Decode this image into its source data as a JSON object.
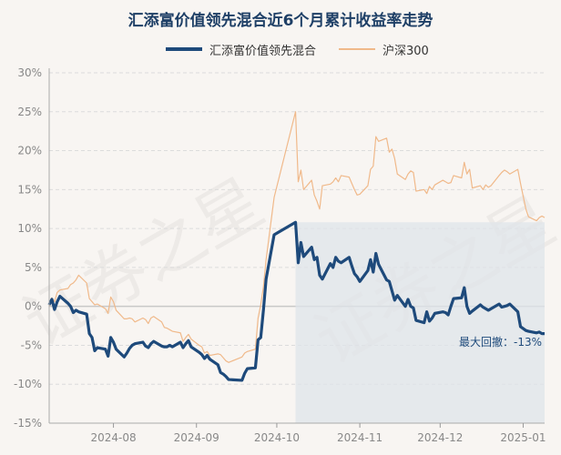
{
  "chart_data": {
    "type": "line",
    "title": "汇添富价值领先混合近6个月累计收益率走势",
    "legend_position": "top",
    "grid": true,
    "ylim": [
      -15,
      30
    ],
    "y_ticks": [
      "30%",
      "25%",
      "20%",
      "15%",
      "10%",
      "5%",
      "0%",
      "-5%",
      "-10%",
      "-15%"
    ],
    "x_ticks": [
      "2024-08",
      "2024-09",
      "2024-10",
      "2024-11",
      "2024-12",
      "2025-01"
    ],
    "x_start": "2024-07-08",
    "x_end": "2025-01-09",
    "series": [
      {
        "name": "汇添富价值领先混合",
        "color": "#1e4a7b",
        "points": [
          [
            "2024-07-08",
            0.2
          ],
          [
            "2024-07-09",
            0.9
          ],
          [
            "2024-07-10",
            -0.4
          ],
          [
            "2024-07-11",
            0.6
          ],
          [
            "2024-07-12",
            1.3
          ],
          [
            "2024-07-15",
            0.4
          ],
          [
            "2024-07-16",
            0.0
          ],
          [
            "2024-07-17",
            -0.8
          ],
          [
            "2024-07-18",
            -0.5
          ],
          [
            "2024-07-19",
            -0.7
          ],
          [
            "2024-07-22",
            -1.0
          ],
          [
            "2024-07-23",
            -3.5
          ],
          [
            "2024-07-24",
            -4.0
          ],
          [
            "2024-07-25",
            -5.7
          ],
          [
            "2024-07-26",
            -5.3
          ],
          [
            "2024-07-29",
            -5.5
          ],
          [
            "2024-07-30",
            -6.4
          ],
          [
            "2024-07-31",
            -4.0
          ],
          [
            "2024-08-01",
            -4.6
          ],
          [
            "2024-08-02",
            -5.5
          ],
          [
            "2024-08-05",
            -6.5
          ],
          [
            "2024-08-06",
            -6.0
          ],
          [
            "2024-08-07",
            -5.4
          ],
          [
            "2024-08-08",
            -5.0
          ],
          [
            "2024-08-09",
            -4.8
          ],
          [
            "2024-08-12",
            -4.6
          ],
          [
            "2024-08-13",
            -5.1
          ],
          [
            "2024-08-14",
            -5.3
          ],
          [
            "2024-08-15",
            -4.8
          ],
          [
            "2024-08-16",
            -4.5
          ],
          [
            "2024-08-19",
            -5.1
          ],
          [
            "2024-08-20",
            -5.2
          ],
          [
            "2024-08-21",
            -5.2
          ],
          [
            "2024-08-22",
            -5.0
          ],
          [
            "2024-08-23",
            -5.2
          ],
          [
            "2024-08-26",
            -4.6
          ],
          [
            "2024-08-27",
            -5.3
          ],
          [
            "2024-08-28",
            -4.8
          ],
          [
            "2024-08-29",
            -4.4
          ],
          [
            "2024-08-30",
            -5.2
          ],
          [
            "2024-09-02",
            -5.9
          ],
          [
            "2024-09-03",
            -6.2
          ],
          [
            "2024-09-04",
            -6.7
          ],
          [
            "2024-09-05",
            -6.3
          ],
          [
            "2024-09-06",
            -6.8
          ],
          [
            "2024-09-09",
            -7.5
          ],
          [
            "2024-09-10",
            -8.5
          ],
          [
            "2024-09-11",
            -8.7
          ],
          [
            "2024-09-12",
            -9.0
          ],
          [
            "2024-09-13",
            -9.4
          ],
          [
            "2024-09-18",
            -9.5
          ],
          [
            "2024-09-19",
            -8.6
          ],
          [
            "2024-09-20",
            -8.0
          ],
          [
            "2024-09-23",
            -7.9
          ],
          [
            "2024-09-24",
            -4.3
          ],
          [
            "2024-09-25",
            -4.0
          ],
          [
            "2024-09-26",
            -0.5
          ],
          [
            "2024-09-27",
            3.5
          ],
          [
            "2024-09-30",
            9.2
          ],
          [
            "2024-10-08",
            10.8
          ],
          [
            "2024-10-09",
            5.6
          ],
          [
            "2024-10-10",
            8.2
          ],
          [
            "2024-10-11",
            6.4
          ],
          [
            "2024-10-14",
            7.6
          ],
          [
            "2024-10-15",
            6.0
          ],
          [
            "2024-10-16",
            6.3
          ],
          [
            "2024-10-17",
            4.0
          ],
          [
            "2024-10-18",
            3.5
          ],
          [
            "2024-10-21",
            5.5
          ],
          [
            "2024-10-22",
            5.0
          ],
          [
            "2024-10-23",
            6.3
          ],
          [
            "2024-10-24",
            5.8
          ],
          [
            "2024-10-25",
            5.6
          ],
          [
            "2024-10-28",
            6.3
          ],
          [
            "2024-10-29",
            5.2
          ],
          [
            "2024-10-30",
            4.2
          ],
          [
            "2024-10-31",
            3.8
          ],
          [
            "2024-11-01",
            3.2
          ],
          [
            "2024-11-04",
            4.6
          ],
          [
            "2024-11-05",
            6.0
          ],
          [
            "2024-11-06",
            4.4
          ],
          [
            "2024-11-07",
            6.8
          ],
          [
            "2024-11-08",
            5.4
          ],
          [
            "2024-11-11",
            3.4
          ],
          [
            "2024-11-12",
            3.2
          ],
          [
            "2024-11-13",
            2.0
          ],
          [
            "2024-11-14",
            0.8
          ],
          [
            "2024-11-15",
            1.4
          ],
          [
            "2024-11-18",
            0.0
          ],
          [
            "2024-11-19",
            0.9
          ],
          [
            "2024-11-20",
            0.0
          ],
          [
            "2024-11-21",
            -0.2
          ],
          [
            "2024-11-22",
            -1.8
          ],
          [
            "2024-11-25",
            -2.1
          ],
          [
            "2024-11-26",
            -0.7
          ],
          [
            "2024-11-27",
            -1.9
          ],
          [
            "2024-11-28",
            -1.5
          ],
          [
            "2024-11-29",
            -0.9
          ],
          [
            "2024-12-02",
            -0.7
          ],
          [
            "2024-12-03",
            -0.8
          ],
          [
            "2024-12-04",
            -1.1
          ],
          [
            "2024-12-05",
            0.0
          ],
          [
            "2024-12-06",
            1.0
          ],
          [
            "2024-12-09",
            1.1
          ],
          [
            "2024-12-10",
            2.4
          ],
          [
            "2024-12-11",
            0.0
          ],
          [
            "2024-12-12",
            -0.9
          ],
          [
            "2024-12-13",
            -0.6
          ],
          [
            "2024-12-16",
            0.2
          ],
          [
            "2024-12-17",
            -0.1
          ],
          [
            "2024-12-18",
            -0.3
          ],
          [
            "2024-12-19",
            -0.5
          ],
          [
            "2024-12-20",
            -0.3
          ],
          [
            "2024-12-23",
            0.3
          ],
          [
            "2024-12-24",
            -0.1
          ],
          [
            "2024-12-25",
            0.0
          ],
          [
            "2024-12-26",
            0.1
          ],
          [
            "2024-12-27",
            0.3
          ],
          [
            "2024-12-30",
            -0.7
          ],
          [
            "2024-12-31",
            -2.6
          ],
          [
            "2025-01-02",
            -3.1
          ],
          [
            "2025-01-03",
            -3.2
          ],
          [
            "2025-01-06",
            -3.4
          ],
          [
            "2025-01-07",
            -3.3
          ],
          [
            "2025-01-08",
            -3.5
          ],
          [
            "2025-01-09",
            -3.5
          ]
        ]
      },
      {
        "name": "沪深300",
        "color": "#f0b98a",
        "points": [
          [
            "2024-07-08",
            0.0
          ],
          [
            "2024-07-09",
            1.1
          ],
          [
            "2024-07-10",
            0.6
          ],
          [
            "2024-07-11",
            1.8
          ],
          [
            "2024-07-12",
            2.1
          ],
          [
            "2024-07-15",
            2.3
          ],
          [
            "2024-07-16",
            2.8
          ],
          [
            "2024-07-17",
            3.0
          ],
          [
            "2024-07-18",
            3.4
          ],
          [
            "2024-07-19",
            4.0
          ],
          [
            "2024-07-22",
            3.0
          ],
          [
            "2024-07-23",
            1.0
          ],
          [
            "2024-07-24",
            0.6
          ],
          [
            "2024-07-25",
            0.2
          ],
          [
            "2024-07-26",
            0.3
          ],
          [
            "2024-07-29",
            -0.3
          ],
          [
            "2024-07-30",
            -0.9
          ],
          [
            "2024-07-31",
            1.2
          ],
          [
            "2024-08-01",
            0.6
          ],
          [
            "2024-08-02",
            -0.5
          ],
          [
            "2024-08-05",
            -1.6
          ],
          [
            "2024-08-06",
            -1.6
          ],
          [
            "2024-08-07",
            -1.5
          ],
          [
            "2024-08-08",
            -1.6
          ],
          [
            "2024-08-09",
            -2.0
          ],
          [
            "2024-08-12",
            -1.5
          ],
          [
            "2024-08-13",
            -1.7
          ],
          [
            "2024-08-14",
            -2.2
          ],
          [
            "2024-08-15",
            -1.5
          ],
          [
            "2024-08-16",
            -1.3
          ],
          [
            "2024-08-19",
            -2.0
          ],
          [
            "2024-08-20",
            -2.7
          ],
          [
            "2024-08-21",
            -2.8
          ],
          [
            "2024-08-22",
            -3.0
          ],
          [
            "2024-08-23",
            -3.2
          ],
          [
            "2024-08-26",
            -3.4
          ],
          [
            "2024-08-27",
            -4.5
          ],
          [
            "2024-08-28",
            -4.0
          ],
          [
            "2024-08-29",
            -3.6
          ],
          [
            "2024-08-30",
            -4.2
          ],
          [
            "2024-09-02",
            -5.0
          ],
          [
            "2024-09-03",
            -5.2
          ],
          [
            "2024-09-04",
            -6.0
          ],
          [
            "2024-09-05",
            -5.8
          ],
          [
            "2024-09-06",
            -6.3
          ],
          [
            "2024-09-09",
            -6.1
          ],
          [
            "2024-09-10",
            -6.2
          ],
          [
            "2024-09-11",
            -6.6
          ],
          [
            "2024-09-12",
            -7.0
          ],
          [
            "2024-09-13",
            -7.2
          ],
          [
            "2024-09-18",
            -6.5
          ],
          [
            "2024-09-19",
            -6.0
          ],
          [
            "2024-09-20",
            -5.8
          ],
          [
            "2024-09-23",
            -5.5
          ],
          [
            "2024-09-24",
            -1.5
          ],
          [
            "2024-09-25",
            0.2
          ],
          [
            "2024-09-26",
            2.5
          ],
          [
            "2024-09-27",
            6.0
          ],
          [
            "2024-09-30",
            14.0
          ],
          [
            "2024-10-08",
            25.0
          ],
          [
            "2024-10-09",
            16.0
          ],
          [
            "2024-10-10",
            17.5
          ],
          [
            "2024-10-11",
            15.0
          ],
          [
            "2024-10-14",
            16.2
          ],
          [
            "2024-10-15",
            14.3
          ],
          [
            "2024-10-16",
            13.5
          ],
          [
            "2024-10-17",
            12.5
          ],
          [
            "2024-10-18",
            15.5
          ],
          [
            "2024-10-21",
            15.7
          ],
          [
            "2024-10-22",
            16.0
          ],
          [
            "2024-10-23",
            16.5
          ],
          [
            "2024-10-24",
            16.0
          ],
          [
            "2024-10-25",
            16.8
          ],
          [
            "2024-10-28",
            16.6
          ],
          [
            "2024-10-29",
            15.8
          ],
          [
            "2024-10-30",
            15.0
          ],
          [
            "2024-10-31",
            14.3
          ],
          [
            "2024-11-01",
            14.4
          ],
          [
            "2024-11-04",
            15.5
          ],
          [
            "2024-11-05",
            17.6
          ],
          [
            "2024-11-06",
            18.0
          ],
          [
            "2024-11-07",
            21.8
          ],
          [
            "2024-11-08",
            21.2
          ],
          [
            "2024-11-11",
            21.6
          ],
          [
            "2024-11-12",
            19.8
          ],
          [
            "2024-11-13",
            20.2
          ],
          [
            "2024-11-14",
            19.0
          ],
          [
            "2024-11-15",
            17.0
          ],
          [
            "2024-11-18",
            16.3
          ],
          [
            "2024-11-19",
            17.0
          ],
          [
            "2024-11-20",
            17.4
          ],
          [
            "2024-11-21",
            17.2
          ],
          [
            "2024-11-22",
            14.8
          ],
          [
            "2024-11-25",
            15.0
          ],
          [
            "2024-11-26",
            14.5
          ],
          [
            "2024-11-27",
            15.4
          ],
          [
            "2024-11-28",
            15.0
          ],
          [
            "2024-11-29",
            15.6
          ],
          [
            "2024-12-02",
            16.2
          ],
          [
            "2024-12-03",
            16.0
          ],
          [
            "2024-12-04",
            15.8
          ],
          [
            "2024-12-05",
            15.9
          ],
          [
            "2024-12-06",
            16.8
          ],
          [
            "2024-12-09",
            16.5
          ],
          [
            "2024-12-10",
            18.5
          ],
          [
            "2024-12-11",
            17.0
          ],
          [
            "2024-12-12",
            17.6
          ],
          [
            "2024-12-13",
            15.2
          ],
          [
            "2024-12-16",
            15.5
          ],
          [
            "2024-12-17",
            15.0
          ],
          [
            "2024-12-18",
            15.6
          ],
          [
            "2024-12-19",
            15.3
          ],
          [
            "2024-12-20",
            15.5
          ],
          [
            "2024-12-23",
            16.8
          ],
          [
            "2024-12-24",
            17.2
          ],
          [
            "2024-12-25",
            17.5
          ],
          [
            "2024-12-26",
            17.3
          ],
          [
            "2024-12-27",
            17.0
          ],
          [
            "2024-12-30",
            17.6
          ],
          [
            "2024-12-31",
            15.8
          ],
          [
            "2025-01-02",
            12.5
          ],
          [
            "2025-01-03",
            11.5
          ],
          [
            "2025-01-06",
            11.0
          ],
          [
            "2025-01-07",
            11.4
          ],
          [
            "2025-01-08",
            11.6
          ],
          [
            "2025-01-09",
            11.4
          ]
        ]
      }
    ],
    "shaded_region": {
      "from": "2024-10-08",
      "to": "2025-01-09",
      "color": "#dfe4ea"
    },
    "annotation": {
      "text": "最大回撤：-13%",
      "color": "#1e4a7b"
    }
  }
}
